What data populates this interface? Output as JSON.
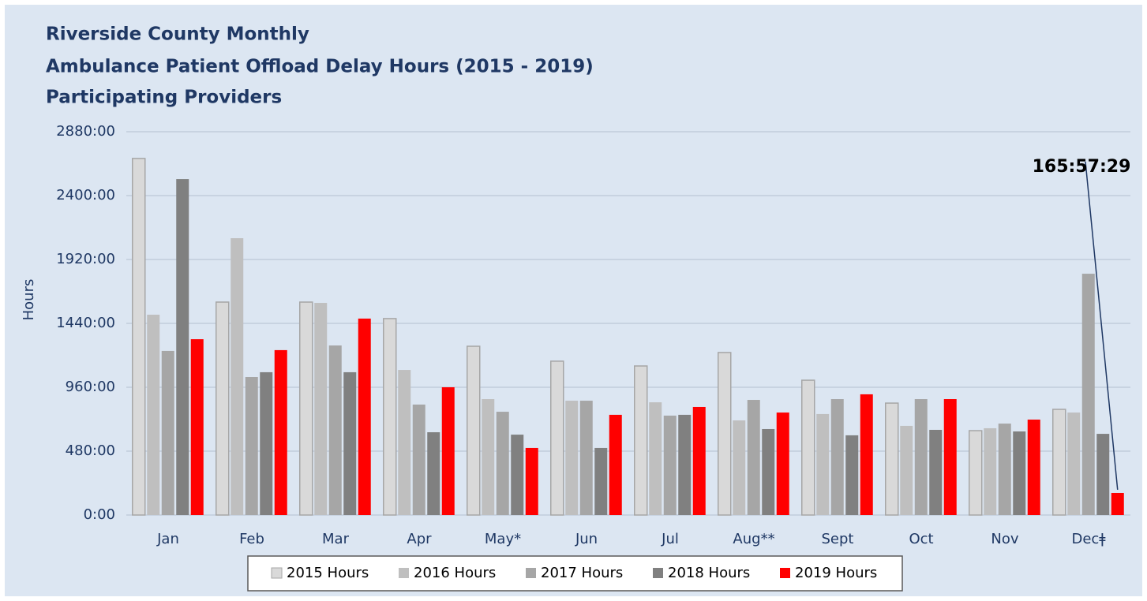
{
  "chart_data": {
    "type": "bar",
    "title": [
      "Riverside County Monthly",
      "Ambulance Patient Offload Delay Hours (2015 - 2019)",
      "Participating Providers"
    ],
    "y_label": "Hours",
    "annotation": "165:57:29",
    "categories": [
      "Jan",
      "Feb",
      "Mar",
      "Apr",
      "May*",
      "Jun",
      "Jul",
      "Aug**",
      "Sept",
      "Oct",
      "Nov",
      "Decǂ"
    ],
    "series": [
      {
        "name": "2015 Hours",
        "color": "#d9d9d9",
        "values": [
          2679,
          1600,
          1600,
          1476,
          1268,
          1156,
          1120,
          1221,
          1013,
          841,
          634,
          794
        ]
      },
      {
        "name": "2016 Hours",
        "color": "#bfbfbf",
        "values": [
          1505,
          2080,
          1594,
          1090,
          871,
          859,
          847,
          711,
          759,
          670,
          652,
          770
        ]
      },
      {
        "name": "2017 Hours",
        "color": "#a6a6a6",
        "values": [
          1233,
          1037,
          1274,
          830,
          776,
          859,
          747,
          865,
          871,
          871,
          687,
          1813
        ]
      },
      {
        "name": "2018 Hours",
        "color": "#808080",
        "values": [
          2524,
          1073,
          1073,
          622,
          604,
          504,
          753,
          646,
          599,
          640,
          628,
          610
        ]
      },
      {
        "name": "2019 Hours",
        "color": "#ff0000",
        "values": [
          1321,
          1239,
          1476,
          960,
          504,
          753,
          812,
          770,
          907,
          871,
          717,
          166
        ]
      }
    ],
    "ylim": [
      0,
      2880
    ],
    "yticks": [
      {
        "value": 0,
        "label": "0:00"
      },
      {
        "value": 480,
        "label": "480:00"
      },
      {
        "value": 960,
        "label": "960:00"
      },
      {
        "value": 1440,
        "label": "1440:00"
      },
      {
        "value": 1920,
        "label": "1920:00"
      },
      {
        "value": 2400,
        "label": "2400:00"
      },
      {
        "value": 2880,
        "label": "2880:00"
      }
    ],
    "grid": true
  }
}
